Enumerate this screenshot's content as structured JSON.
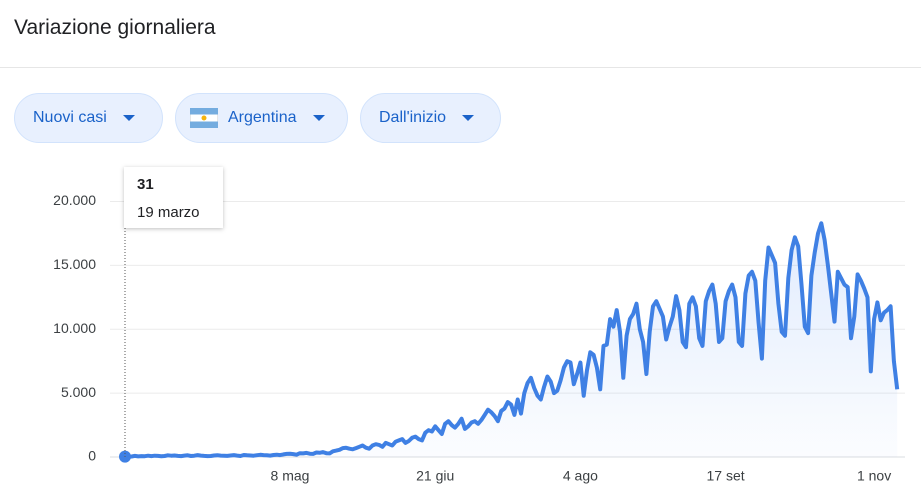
{
  "chart_data": {
    "type": "line",
    "title": "Variazione giornaliera",
    "controls": [
      "Nuovi casi",
      "Argentina",
      "Dall'inizio"
    ],
    "categories": [
      "19 marzo",
      null,
      null,
      null,
      null,
      null,
      null,
      null,
      null,
      null,
      null,
      null,
      null,
      null,
      null,
      null,
      null,
      null,
      null,
      null,
      null,
      null,
      null,
      null,
      null,
      null,
      null,
      null,
      null,
      null,
      null,
      null,
      null,
      null,
      null,
      null,
      null,
      null,
      null,
      null,
      null,
      null,
      null,
      null,
      null,
      null,
      null,
      null,
      null,
      null,
      "8 mag",
      null,
      null,
      null,
      null,
      null,
      null,
      null,
      null,
      null,
      null,
      null,
      null,
      null,
      null,
      null,
      null,
      null,
      null,
      null,
      null,
      null,
      null,
      null,
      null,
      null,
      null,
      null,
      null,
      null,
      null,
      null,
      null,
      null,
      null,
      null,
      null,
      null,
      null,
      null,
      null,
      null,
      null,
      null,
      "21 giu",
      null,
      null,
      null,
      null,
      null,
      null,
      null,
      null,
      null,
      null,
      null,
      null,
      null,
      null,
      null,
      null,
      null,
      null,
      null,
      null,
      null,
      null,
      null,
      null,
      null,
      null,
      null,
      null,
      null,
      null,
      null,
      null,
      null,
      null,
      null,
      null,
      null,
      null,
      null,
      null,
      null,
      null,
      null,
      "4 ago",
      null,
      null,
      null,
      null,
      null,
      null,
      null,
      null,
      null,
      null,
      null,
      null,
      null,
      null,
      null,
      null,
      null,
      null,
      null,
      null,
      null,
      null,
      null,
      null,
      null,
      null,
      null,
      null,
      null,
      null,
      null,
      null,
      null,
      null,
      null,
      null,
      null,
      null,
      null,
      null,
      null,
      null,
      null,
      "17 set",
      null,
      null,
      null,
      null,
      null,
      null,
      null,
      null,
      null,
      null,
      null,
      null,
      null,
      null,
      null,
      null,
      null,
      null,
      null,
      null,
      null,
      null,
      null,
      null,
      null,
      null,
      null,
      null,
      null,
      null,
      null,
      null,
      null,
      null,
      null,
      null,
      null,
      null,
      null,
      null,
      null,
      null,
      null,
      null,
      "1 nov",
      null,
      null,
      null,
      null,
      null,
      null,
      null
    ],
    "series": [
      {
        "name": "Nuovi casi",
        "color": "#3f80e4",
        "values": [
          31,
          20,
          40,
          90,
          50,
          70,
          60,
          100,
          70,
          100,
          90,
          60,
          80,
          130,
          100,
          120,
          90,
          70,
          110,
          130,
          80,
          100,
          150,
          110,
          90,
          70,
          80,
          120,
          140,
          110,
          100,
          90,
          120,
          150,
          110,
          80,
          160,
          130,
          120,
          100,
          140,
          170,
          150,
          130,
          110,
          160,
          180,
          150,
          200,
          240,
          250,
          230,
          180,
          300,
          280,
          320,
          260,
          240,
          350,
          330,
          380,
          300,
          280,
          450,
          500,
          560,
          700,
          720,
          650,
          600,
          700,
          800,
          900,
          730,
          650,
          900,
          1000,
          950,
          800,
          1100,
          1000,
          900,
          1200,
          1300,
          1400,
          1100,
          1250,
          1500,
          1600,
          1400,
          1300,
          1900,
          2100,
          2000,
          2400,
          2100,
          1800,
          2600,
          2800,
          2500,
          2300,
          2600,
          3000,
          2200,
          2400,
          2700,
          2800,
          2600,
          2900,
          3300,
          3700,
          3500,
          3200,
          2800,
          3600,
          3800,
          4300,
          4100,
          3300,
          4500,
          3400,
          5000,
          5800,
          6200,
          5400,
          4800,
          4500,
          5500,
          6300,
          5900,
          5000,
          5200,
          6000,
          7000,
          7500,
          7400,
          5700,
          6500,
          7400,
          4800,
          6800,
          8200,
          8000,
          7000,
          5300,
          8700,
          8800,
          10800,
          10200,
          11500,
          9800,
          6200,
          9500,
          10800,
          11200,
          12000,
          10000,
          9000,
          6500,
          9800,
          11800,
          12200,
          11600,
          11000,
          9200,
          10200,
          11000,
          12600,
          11500,
          9000,
          8600,
          12000,
          12500,
          11800,
          9300,
          8700,
          12200,
          13000,
          13500,
          12000,
          9000,
          9300,
          12200,
          13000,
          13500,
          12500,
          9000,
          8700,
          12800,
          14200,
          14500,
          13800,
          10500,
          7700,
          13800,
          16400,
          15800,
          15200,
          12000,
          9800,
          9500,
          14000,
          16200,
          17200,
          16500,
          13500,
          10200,
          9700,
          14200,
          16000,
          17500,
          18300,
          17000,
          15000,
          12800,
          10600,
          14500,
          14000,
          13500,
          13300,
          9300,
          11000,
          14300,
          13800,
          13200,
          12500,
          6700,
          10800,
          12100,
          10700,
          11300,
          11500,
          11800,
          7500,
          5300
        ]
      }
    ],
    "ylim": [
      0,
      22000
    ],
    "yticks": [
      0,
      {
        "value": 5000,
        "label": "5.000"
      },
      {
        "value": 10000,
        "label": "10.000"
      },
      {
        "value": 15000,
        "label": "15.000"
      },
      {
        "value": 20000,
        "label": "20.000"
      }
    ],
    "grid": true
  }
}
